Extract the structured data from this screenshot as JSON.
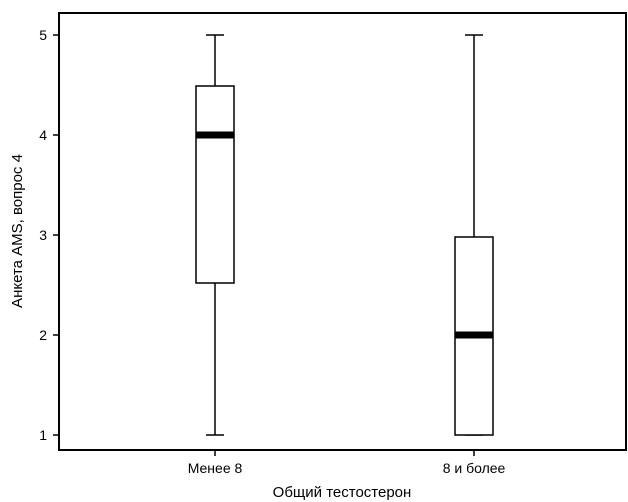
{
  "chart_data": {
    "type": "box",
    "xlabel": "Общий тестостерон",
    "ylabel": "Анкета AMS, вопрос 4",
    "ylim": [
      0.85,
      5.22
    ],
    "yticks": [
      1,
      2,
      3,
      4,
      5
    ],
    "ytick_labels": [
      "1",
      "2",
      "3",
      "4",
      "5"
    ],
    "categories": [
      "Менее 8",
      "8 и более"
    ],
    "boxes": [
      {
        "category": "Менее 8",
        "min": 1,
        "q1": 2.52,
        "median": 4,
        "q3": 4.49,
        "max": 5
      },
      {
        "category": "8 и более",
        "min": 1,
        "q1": 1,
        "median": 2,
        "q3": 2.98,
        "max": 5
      }
    ],
    "grid": false,
    "legend": "none"
  }
}
